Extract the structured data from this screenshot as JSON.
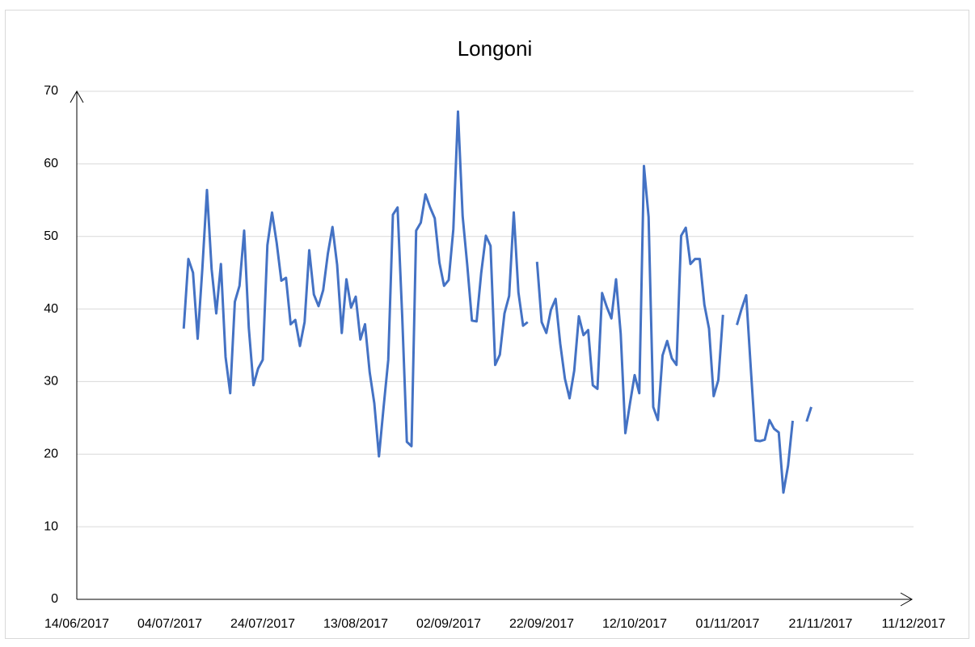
{
  "chart_data": {
    "type": "line",
    "title": "Longoni",
    "x": [
      "07/07/2017",
      "08/07/2017",
      "09/07/2017",
      "10/07/2017",
      "11/07/2017",
      "12/07/2017",
      "13/07/2017",
      "14/07/2017",
      "15/07/2017",
      "16/07/2017",
      "17/07/2017",
      "18/07/2017",
      "19/07/2017",
      "20/07/2017",
      "21/07/2017",
      "22/07/2017",
      "23/07/2017",
      "24/07/2017",
      "25/07/2017",
      "26/07/2017",
      "27/07/2017",
      "28/07/2017",
      "29/07/2017",
      "30/07/2017",
      "31/07/2017",
      "01/08/2017",
      "02/08/2017",
      "03/08/2017",
      "04/08/2017",
      "05/08/2017",
      "06/08/2017",
      "07/08/2017",
      "08/08/2017",
      "09/08/2017",
      "10/08/2017",
      "11/08/2017",
      "12/08/2017",
      "13/08/2017",
      "14/08/2017",
      "15/08/2017",
      "16/08/2017",
      "17/08/2017",
      "18/08/2017",
      "19/08/2017",
      "20/08/2017",
      "21/08/2017",
      "22/08/2017",
      "23/08/2017",
      "24/08/2017",
      "25/08/2017",
      "26/08/2017",
      "27/08/2017",
      "28/08/2017",
      "29/08/2017",
      "30/08/2017",
      "31/08/2017",
      "01/09/2017",
      "02/09/2017",
      "03/09/2017",
      "04/09/2017",
      "05/09/2017",
      "06/09/2017",
      "07/09/2017",
      "08/09/2017",
      "09/09/2017",
      "10/09/2017",
      "11/09/2017",
      "12/09/2017",
      "13/09/2017",
      "14/09/2017",
      "15/09/2017",
      "16/09/2017",
      "17/09/2017",
      "18/09/2017",
      "19/09/2017",
      "20/09/2017",
      "21/09/2017",
      "22/09/2017",
      "23/09/2017",
      "24/09/2017",
      "25/09/2017",
      "26/09/2017",
      "27/09/2017",
      "28/09/2017",
      "29/09/2017",
      "30/09/2017",
      "01/10/2017",
      "02/10/2017",
      "03/10/2017",
      "04/10/2017",
      "05/10/2017",
      "06/10/2017",
      "07/10/2017",
      "08/10/2017",
      "09/10/2017",
      "10/10/2017",
      "11/10/2017",
      "12/10/2017",
      "13/10/2017",
      "14/10/2017",
      "15/10/2017",
      "16/10/2017",
      "17/10/2017",
      "18/10/2017",
      "19/10/2017",
      "20/10/2017",
      "21/10/2017",
      "22/10/2017",
      "23/10/2017",
      "24/10/2017",
      "25/10/2017",
      "26/10/2017",
      "27/10/2017",
      "28/10/2017",
      "29/10/2017",
      "30/10/2017",
      "31/10/2017",
      "01/11/2017",
      "02/11/2017",
      "03/11/2017",
      "04/11/2017",
      "05/11/2017",
      "06/11/2017",
      "07/11/2017",
      "08/11/2017",
      "09/11/2017",
      "10/11/2017",
      "11/11/2017",
      "12/11/2017",
      "13/11/2017",
      "14/11/2017",
      "15/11/2017",
      "16/11/2017",
      "17/11/2017",
      "18/11/2017",
      "19/11/2017"
    ],
    "series": [
      {
        "color": "#4472c4",
        "values": [
          37.3,
          46.9,
          45,
          35.9,
          45.5,
          56.4,
          45.5,
          39.4,
          46.2,
          33.4,
          28.4,
          41,
          43.2,
          50.8,
          37.4,
          29.5,
          31.8,
          33,
          48.8,
          53.3,
          49.1,
          43.9,
          44.3,
          37.9,
          38.5,
          34.9,
          38.2,
          48.1,
          42.0,
          40.4,
          42.6,
          47.6,
          51.3,
          46.1,
          36.7,
          44.1,
          40.2,
          41.7,
          35.8,
          37.9,
          31.3,
          27.0,
          19.7,
          26.5,
          33.0,
          53.0,
          54.0,
          39.0,
          21.7,
          21.1,
          50.8,
          51.9,
          55.8,
          54.0,
          52.5,
          46.4,
          43.2,
          44.0,
          51.0,
          67.2,
          52.8,
          46.0,
          38.4,
          38.3,
          45.0,
          50.1,
          48.7,
          32.3,
          33.7,
          39.4,
          41.8,
          53.3,
          42.3,
          37.7,
          38.2,
          null,
          46.5,
          38.2,
          36.7,
          39.9,
          41.4,
          35.2,
          30.4,
          27.7,
          31.5,
          39.0,
          36.4,
          37.1,
          29.5,
          29.0,
          42.2,
          40.3,
          38.7,
          44.1,
          36.6,
          22.9,
          27.0,
          30.9,
          28.4,
          59.7,
          52.7,
          26.5,
          24.7,
          33.6,
          35.6,
          33.2,
          32.3,
          50.1,
          51.2,
          46.2,
          46.9,
          46.9,
          40.6,
          37.3,
          28.0,
          30.2,
          39.2,
          null,
          null,
          37.8,
          40,
          41.9,
          31.7,
          21.9,
          21.8,
          22.0,
          24.7,
          23.5,
          23.0,
          14.7,
          18.4,
          24.6,
          null,
          null,
          24.5,
          26.5
        ]
      }
    ],
    "xlim": [
      "14/06/2017",
      "11/12/2017"
    ],
    "xticks": [
      "14/06/2017",
      "04/07/2017",
      "24/07/2017",
      "13/08/2017",
      "02/09/2017",
      "22/09/2017",
      "12/10/2017",
      "01/11/2017",
      "21/11/2017",
      "11/12/2017"
    ],
    "ylim": [
      0,
      70
    ],
    "yticks": [
      0,
      10,
      20,
      30,
      40,
      50,
      60,
      70
    ],
    "grid": true
  }
}
